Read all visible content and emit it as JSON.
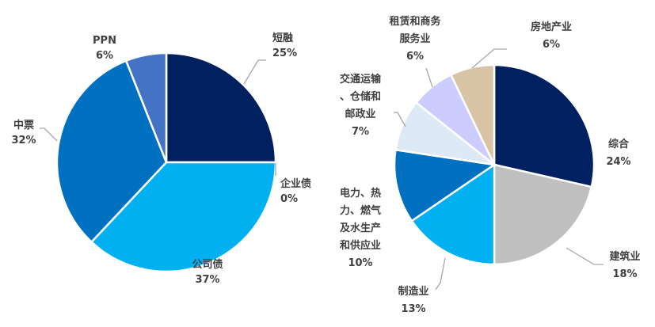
{
  "chart_data": [
    {
      "type": "pie",
      "title": "",
      "slices": [
        {
          "label": "短融",
          "value": 25,
          "pct_label": "25%",
          "color": "#002060"
        },
        {
          "label": "企业债",
          "value": 0,
          "pct_label": "0%",
          "color": "#1f3864"
        },
        {
          "label": "公司债",
          "value": 37,
          "pct_label": "37%",
          "color": "#00b0f0"
        },
        {
          "label": "中票",
          "value": 32,
          "pct_label": "32%",
          "color": "#0070c0"
        },
        {
          "label": "PPN",
          "value": 6,
          "pct_label": "6%",
          "color": "#4472c4"
        }
      ]
    },
    {
      "type": "pie",
      "title": "",
      "slices": [
        {
          "label": "综合",
          "value": 24,
          "pct_label": "24%",
          "color": "#002060"
        },
        {
          "label": "建筑业",
          "value": 18,
          "pct_label": "18%",
          "color": "#bfbfbf"
        },
        {
          "label": "制造业",
          "value": 13,
          "pct_label": "13%",
          "color": "#00b0f0"
        },
        {
          "label": "电力、热力、燃气及水生产和供应业",
          "value": 10,
          "pct_label": "10%",
          "color": "#0070c0"
        },
        {
          "label": "交通运输、仓储和邮政业",
          "value": 7,
          "pct_label": "7%",
          "color": "#dde9f5"
        },
        {
          "label": "租赁和商务服务业",
          "value": 6,
          "pct_label": "6%",
          "color": "#ccccff"
        },
        {
          "label": "房地产业",
          "value": 6,
          "pct_label": "6%",
          "color": "#d9c3a5"
        }
      ]
    }
  ]
}
